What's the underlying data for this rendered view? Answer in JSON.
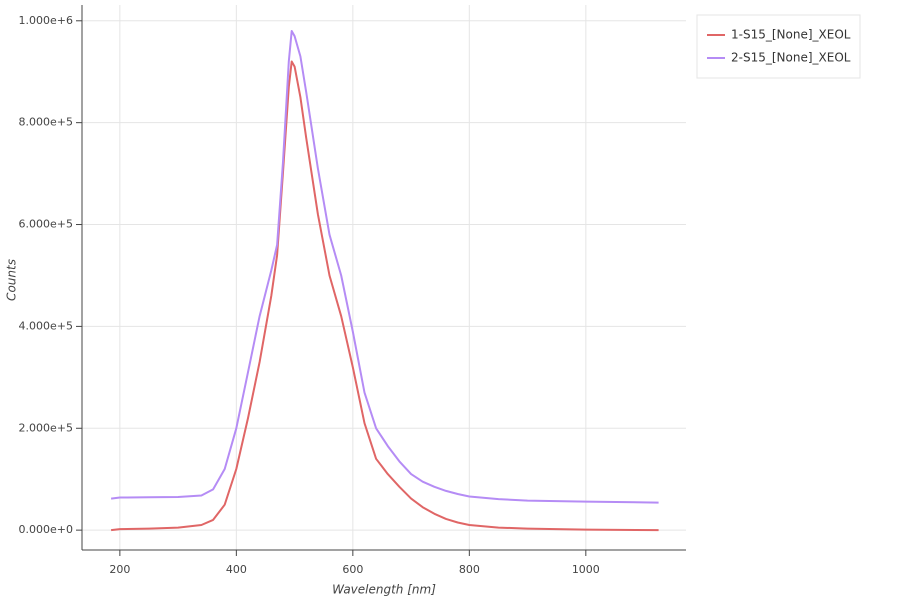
{
  "chart_data": {
    "type": "line",
    "x_label": "Wavelength [nm]",
    "y_label": "Counts",
    "x": [
      185,
      200,
      250,
      300,
      340,
      360,
      380,
      400,
      420,
      440,
      460,
      470,
      480,
      490,
      495,
      500,
      510,
      520,
      540,
      560,
      580,
      600,
      620,
      640,
      660,
      680,
      700,
      720,
      740,
      760,
      780,
      800,
      850,
      900,
      1000,
      1125
    ],
    "series": [
      {
        "name": "1-S15_[None]_XEOL",
        "color": "#e06666",
        "values": [
          0,
          2000,
          3000,
          5000,
          10000,
          20000,
          50000,
          120000,
          220000,
          330000,
          460000,
          540000,
          700000,
          870000,
          920000,
          910000,
          850000,
          770000,
          620000,
          500000,
          420000,
          320000,
          210000,
          140000,
          110000,
          85000,
          62000,
          45000,
          32000,
          22000,
          15000,
          10000,
          5000,
          3000,
          1000,
          0
        ]
      },
      {
        "name": "2-S15_[None]_XEOL",
        "color": "#b58cf5",
        "values": [
          62000,
          64000,
          64500,
          65000,
          68000,
          80000,
          120000,
          200000,
          310000,
          420000,
          510000,
          560000,
          720000,
          920000,
          980000,
          970000,
          930000,
          860000,
          710000,
          580000,
          500000,
          390000,
          270000,
          200000,
          165000,
          135000,
          110000,
          95000,
          85000,
          77000,
          71000,
          66000,
          61000,
          58000,
          56000,
          54000
        ]
      }
    ],
    "xlim": [
      135,
      1172
    ],
    "xticks": [
      200,
      400,
      600,
      800,
      1000
    ],
    "ylim": [
      -39000,
      1031000
    ],
    "yticks": [
      {
        "value": 0,
        "label": "0.000e+0"
      },
      {
        "value": 200000,
        "label": "2.000e+5"
      },
      {
        "value": 400000,
        "label": "4.000e+5"
      },
      {
        "value": 600000,
        "label": "6.000e+5"
      },
      {
        "value": 800000,
        "label": "8.000e+5"
      },
      {
        "value": 1000000,
        "label": "1.000e+6"
      }
    ],
    "grid": true,
    "legend_position": "outside-top-right"
  }
}
